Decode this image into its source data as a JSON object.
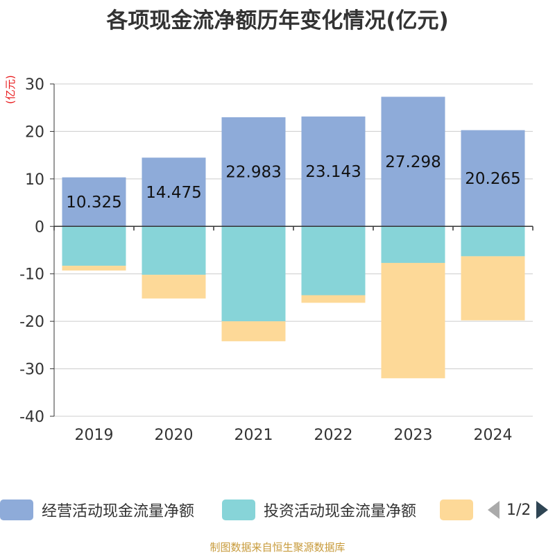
{
  "title": "各项现金流净额历年变化情况(亿元)",
  "unit_label": "(亿元)",
  "colors": {
    "operating": "#8eabd9",
    "investing": "#87d4d8",
    "third": "#fdd998",
    "unit_text": "#e8191b",
    "source_text": "#c79a3a"
  },
  "chart_data": {
    "type": "bar",
    "stacked": true,
    "categories": [
      "2019",
      "2020",
      "2021",
      "2022",
      "2023",
      "2024"
    ],
    "ylim": [
      -40,
      30
    ],
    "yticks": [
      30,
      20,
      10,
      0,
      -10,
      -20,
      -30,
      -40
    ],
    "grid": true,
    "legend_position": "bottom",
    "series": [
      {
        "name": "经营活动现金流量净额",
        "values": [
          10.325,
          14.475,
          22.983,
          23.143,
          27.298,
          20.265
        ],
        "show_labels": true
      },
      {
        "name": "投资活动现金流量净额",
        "values": [
          -8.3,
          -10.2,
          -20.0,
          -14.5,
          -7.7,
          -6.3
        ]
      },
      {
        "name": "",
        "values": [
          -1.0,
          -5.0,
          -4.2,
          -1.6,
          -24.3,
          -13.5
        ]
      }
    ]
  },
  "legend": {
    "items": [
      {
        "label": "经营活动现金流量净额"
      },
      {
        "label": "投资活动现金流量净额"
      },
      {
        "label": ""
      }
    ],
    "page": "1/2"
  },
  "source": "制图数据来自恒生聚源数据库"
}
